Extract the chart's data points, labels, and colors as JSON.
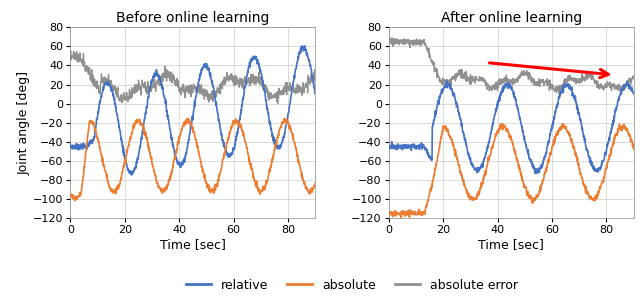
{
  "title_left": "Before online learning",
  "title_right": "After online learning",
  "xlabel": "Time [sec]",
  "ylabel": "Joint angle [deg]",
  "ylim": [
    -120,
    80
  ],
  "xlim": [
    0,
    90
  ],
  "yticks": [
    -120,
    -100,
    -80,
    -60,
    -40,
    -20,
    0,
    20,
    40,
    60,
    80
  ],
  "xticks": [
    0,
    20,
    40,
    60,
    80
  ],
  "color_relative": "#4472C4",
  "color_absolute": "#ED7D31",
  "color_error": "#909090",
  "color_arrow": "#FF0000",
  "legend_labels": [
    "relative",
    "absolute",
    "absolute error"
  ],
  "title_fontsize": 10,
  "label_fontsize": 9,
  "tick_fontsize": 8
}
